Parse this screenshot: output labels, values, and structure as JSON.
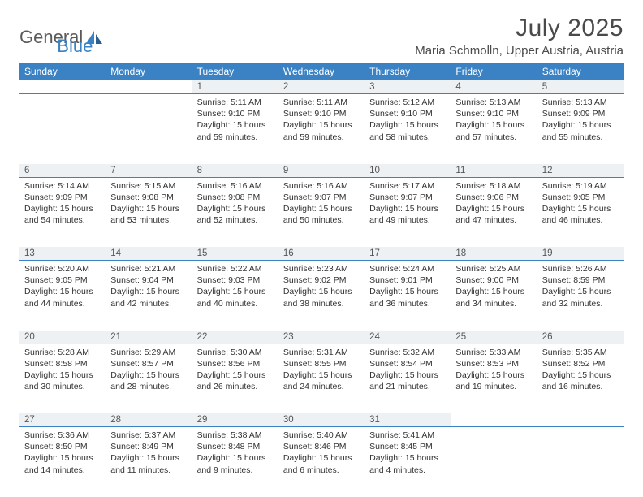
{
  "logo": {
    "part1": "General",
    "part2": "Blue"
  },
  "title": "July 2025",
  "location": "Maria Schmolln, Upper Austria, Austria",
  "colors": {
    "header_bg": "#3b82c4",
    "header_text": "#ffffff",
    "daynum_bg": "#eef1f4",
    "daynum_border": "#3b82c4",
    "body_bg": "#ffffff"
  },
  "day_headers": [
    "Sunday",
    "Monday",
    "Tuesday",
    "Wednesday",
    "Thursday",
    "Friday",
    "Saturday"
  ],
  "weeks": [
    [
      null,
      null,
      {
        "n": "1",
        "sr": "Sunrise: 5:11 AM",
        "ss": "Sunset: 9:10 PM",
        "dl": "Daylight: 15 hours and 59 minutes."
      },
      {
        "n": "2",
        "sr": "Sunrise: 5:11 AM",
        "ss": "Sunset: 9:10 PM",
        "dl": "Daylight: 15 hours and 59 minutes."
      },
      {
        "n": "3",
        "sr": "Sunrise: 5:12 AM",
        "ss": "Sunset: 9:10 PM",
        "dl": "Daylight: 15 hours and 58 minutes."
      },
      {
        "n": "4",
        "sr": "Sunrise: 5:13 AM",
        "ss": "Sunset: 9:10 PM",
        "dl": "Daylight: 15 hours and 57 minutes."
      },
      {
        "n": "5",
        "sr": "Sunrise: 5:13 AM",
        "ss": "Sunset: 9:09 PM",
        "dl": "Daylight: 15 hours and 55 minutes."
      }
    ],
    [
      {
        "n": "6",
        "sr": "Sunrise: 5:14 AM",
        "ss": "Sunset: 9:09 PM",
        "dl": "Daylight: 15 hours and 54 minutes."
      },
      {
        "n": "7",
        "sr": "Sunrise: 5:15 AM",
        "ss": "Sunset: 9:08 PM",
        "dl": "Daylight: 15 hours and 53 minutes."
      },
      {
        "n": "8",
        "sr": "Sunrise: 5:16 AM",
        "ss": "Sunset: 9:08 PM",
        "dl": "Daylight: 15 hours and 52 minutes."
      },
      {
        "n": "9",
        "sr": "Sunrise: 5:16 AM",
        "ss": "Sunset: 9:07 PM",
        "dl": "Daylight: 15 hours and 50 minutes."
      },
      {
        "n": "10",
        "sr": "Sunrise: 5:17 AM",
        "ss": "Sunset: 9:07 PM",
        "dl": "Daylight: 15 hours and 49 minutes."
      },
      {
        "n": "11",
        "sr": "Sunrise: 5:18 AM",
        "ss": "Sunset: 9:06 PM",
        "dl": "Daylight: 15 hours and 47 minutes."
      },
      {
        "n": "12",
        "sr": "Sunrise: 5:19 AM",
        "ss": "Sunset: 9:05 PM",
        "dl": "Daylight: 15 hours and 46 minutes."
      }
    ],
    [
      {
        "n": "13",
        "sr": "Sunrise: 5:20 AM",
        "ss": "Sunset: 9:05 PM",
        "dl": "Daylight: 15 hours and 44 minutes."
      },
      {
        "n": "14",
        "sr": "Sunrise: 5:21 AM",
        "ss": "Sunset: 9:04 PM",
        "dl": "Daylight: 15 hours and 42 minutes."
      },
      {
        "n": "15",
        "sr": "Sunrise: 5:22 AM",
        "ss": "Sunset: 9:03 PM",
        "dl": "Daylight: 15 hours and 40 minutes."
      },
      {
        "n": "16",
        "sr": "Sunrise: 5:23 AM",
        "ss": "Sunset: 9:02 PM",
        "dl": "Daylight: 15 hours and 38 minutes."
      },
      {
        "n": "17",
        "sr": "Sunrise: 5:24 AM",
        "ss": "Sunset: 9:01 PM",
        "dl": "Daylight: 15 hours and 36 minutes."
      },
      {
        "n": "18",
        "sr": "Sunrise: 5:25 AM",
        "ss": "Sunset: 9:00 PM",
        "dl": "Daylight: 15 hours and 34 minutes."
      },
      {
        "n": "19",
        "sr": "Sunrise: 5:26 AM",
        "ss": "Sunset: 8:59 PM",
        "dl": "Daylight: 15 hours and 32 minutes."
      }
    ],
    [
      {
        "n": "20",
        "sr": "Sunrise: 5:28 AM",
        "ss": "Sunset: 8:58 PM",
        "dl": "Daylight: 15 hours and 30 minutes."
      },
      {
        "n": "21",
        "sr": "Sunrise: 5:29 AM",
        "ss": "Sunset: 8:57 PM",
        "dl": "Daylight: 15 hours and 28 minutes."
      },
      {
        "n": "22",
        "sr": "Sunrise: 5:30 AM",
        "ss": "Sunset: 8:56 PM",
        "dl": "Daylight: 15 hours and 26 minutes."
      },
      {
        "n": "23",
        "sr": "Sunrise: 5:31 AM",
        "ss": "Sunset: 8:55 PM",
        "dl": "Daylight: 15 hours and 24 minutes."
      },
      {
        "n": "24",
        "sr": "Sunrise: 5:32 AM",
        "ss": "Sunset: 8:54 PM",
        "dl": "Daylight: 15 hours and 21 minutes."
      },
      {
        "n": "25",
        "sr": "Sunrise: 5:33 AM",
        "ss": "Sunset: 8:53 PM",
        "dl": "Daylight: 15 hours and 19 minutes."
      },
      {
        "n": "26",
        "sr": "Sunrise: 5:35 AM",
        "ss": "Sunset: 8:52 PM",
        "dl": "Daylight: 15 hours and 16 minutes."
      }
    ],
    [
      {
        "n": "27",
        "sr": "Sunrise: 5:36 AM",
        "ss": "Sunset: 8:50 PM",
        "dl": "Daylight: 15 hours and 14 minutes."
      },
      {
        "n": "28",
        "sr": "Sunrise: 5:37 AM",
        "ss": "Sunset: 8:49 PM",
        "dl": "Daylight: 15 hours and 11 minutes."
      },
      {
        "n": "29",
        "sr": "Sunrise: 5:38 AM",
        "ss": "Sunset: 8:48 PM",
        "dl": "Daylight: 15 hours and 9 minutes."
      },
      {
        "n": "30",
        "sr": "Sunrise: 5:40 AM",
        "ss": "Sunset: 8:46 PM",
        "dl": "Daylight: 15 hours and 6 minutes."
      },
      {
        "n": "31",
        "sr": "Sunrise: 5:41 AM",
        "ss": "Sunset: 8:45 PM",
        "dl": "Daylight: 15 hours and 4 minutes."
      },
      null,
      null
    ]
  ]
}
